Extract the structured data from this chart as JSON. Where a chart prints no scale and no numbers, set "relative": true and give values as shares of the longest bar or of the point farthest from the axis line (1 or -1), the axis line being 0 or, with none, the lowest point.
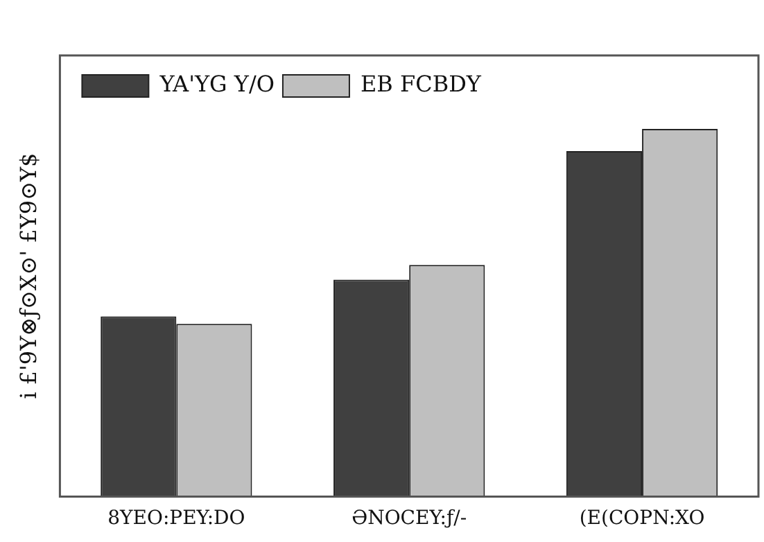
{
  "chart_data": {
    "type": "bar",
    "relative": true,
    "ylabel": "i £'9Y⊗ƒ⊙X⊙' £Y9⊙Y$",
    "categories": [
      "8YEO:PEY:DO",
      "ƏNOCEY:ƒ/-",
      "(E(COPN:XO"
    ],
    "series": [
      {
        "name": "YA'YG Y/O",
        "color": "#404040",
        "values": [
          0.49,
          0.59,
          0.94
        ]
      },
      {
        "name": "EB FCBDY",
        "color": "#bfbfbf",
        "values": [
          0.47,
          0.63,
          1
        ]
      }
    ],
    "legend": "top left",
    "grid": false
  }
}
